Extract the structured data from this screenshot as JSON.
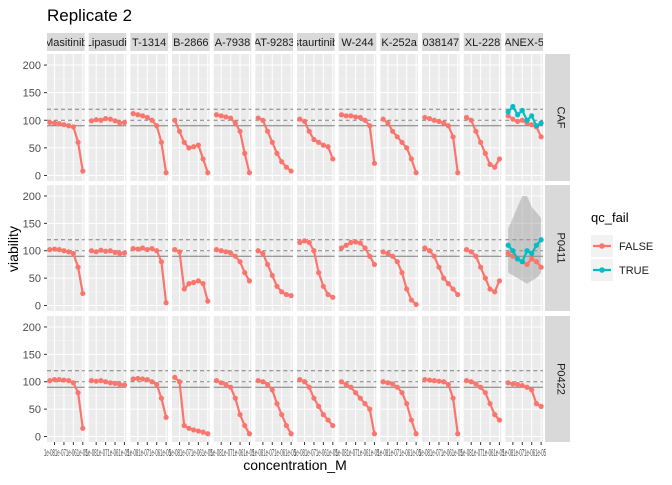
{
  "chart_data": {
    "type": "line",
    "title": "Replicate 2",
    "xlabel": "concentration_M",
    "ylabel": "viability",
    "ylim": [
      -10,
      220
    ],
    "yticks": [
      0,
      50,
      100,
      150,
      200
    ],
    "x_tick_text": "1e-081e-071e-061e-05",
    "reference_lines": {
      "solid": 90,
      "dashed": [
        100,
        120
      ]
    },
    "drugs": [
      "Masitinib",
      "Lipasudil",
      "T-1314",
      "B-2866",
      "A-7938",
      "AT-9283",
      "staurtinib",
      "W-244",
      "K-252a",
      "038147",
      "XL-228",
      "ANEX-5"
    ],
    "cell_lines": [
      "CAF",
      "P0411",
      "P0422"
    ],
    "legend": {
      "title": "qc_fail",
      "position": "right",
      "entries": [
        {
          "label": "FALSE",
          "color": "#F8766D"
        },
        {
          "label": "TRUE",
          "color": "#00BFC4"
        }
      ]
    },
    "log10_concentration": [
      -8.5,
      -8,
      -7.5,
      -7,
      -6.5,
      -6,
      -5.5,
      -5
    ],
    "grid": true,
    "series": [
      {
        "row": "CAF",
        "drug": "Masitinib",
        "qc_fail": "FALSE",
        "values": [
          96,
          95,
          94,
          92,
          90,
          88,
          60,
          8
        ]
      },
      {
        "row": "CAF",
        "drug": "Lipasudil",
        "qc_fail": "FALSE",
        "values": [
          99,
          101,
          100,
          103,
          102,
          99,
          95,
          96
        ]
      },
      {
        "row": "CAF",
        "drug": "T-1314",
        "qc_fail": "FALSE",
        "values": [
          112,
          110,
          108,
          105,
          100,
          90,
          60,
          5
        ]
      },
      {
        "row": "CAF",
        "drug": "B-2866",
        "qc_fail": "FALSE",
        "values": [
          100,
          80,
          60,
          50,
          52,
          55,
          30,
          5
        ]
      },
      {
        "row": "CAF",
        "drug": "A-7938",
        "qc_fail": "FALSE",
        "values": [
          110,
          108,
          106,
          104,
          95,
          80,
          40,
          5
        ]
      },
      {
        "row": "CAF",
        "drug": "AT-9283",
        "qc_fail": "FALSE",
        "values": [
          104,
          100,
          80,
          60,
          40,
          25,
          15,
          8
        ]
      },
      {
        "row": "CAF",
        "drug": "staurtinib",
        "qc_fail": "FALSE",
        "values": [
          102,
          98,
          80,
          65,
          60,
          55,
          52,
          30
        ]
      },
      {
        "row": "CAF",
        "drug": "W-244",
        "qc_fail": "FALSE",
        "values": [
          110,
          108,
          108,
          106,
          105,
          100,
          90,
          22
        ]
      },
      {
        "row": "CAF",
        "drug": "K-252a",
        "qc_fail": "FALSE",
        "values": [
          102,
          95,
          80,
          70,
          60,
          50,
          30,
          5
        ]
      },
      {
        "row": "CAF",
        "drug": "038147",
        "qc_fail": "FALSE",
        "values": [
          105,
          103,
          100,
          98,
          95,
          90,
          70,
          5
        ]
      },
      {
        "row": "CAF",
        "drug": "XL-228",
        "qc_fail": "FALSE",
        "values": [
          105,
          100,
          80,
          60,
          40,
          20,
          15,
          30
        ]
      },
      {
        "row": "CAF",
        "drug": "ANEX-5",
        "qc_fail": "FALSE",
        "values": [
          108,
          102,
          98,
          100,
          95,
          92,
          88,
          70
        ]
      },
      {
        "row": "CAF",
        "drug": "ANEX-5",
        "qc_fail": "TRUE",
        "values": [
          115,
          125,
          110,
          118,
          100,
          108,
          90,
          95
        ]
      },
      {
        "row": "P0411",
        "drug": "Masitinib",
        "qc_fail": "FALSE",
        "values": [
          102,
          103,
          102,
          100,
          98,
          95,
          70,
          22
        ]
      },
      {
        "row": "P0411",
        "drug": "Lipasudil",
        "qc_fail": "FALSE",
        "values": [
          100,
          98,
          101,
          99,
          100,
          97,
          95,
          96
        ]
      },
      {
        "row": "P0411",
        "drug": "T-1314",
        "qc_fail": "FALSE",
        "values": [
          104,
          103,
          105,
          102,
          104,
          100,
          80,
          5
        ]
      },
      {
        "row": "P0411",
        "drug": "B-2866",
        "qc_fail": "FALSE",
        "values": [
          102,
          98,
          30,
          40,
          42,
          45,
          40,
          8
        ]
      },
      {
        "row": "P0411",
        "drug": "A-7938",
        "qc_fail": "FALSE",
        "values": [
          102,
          100,
          98,
          96,
          90,
          80,
          60,
          45
        ]
      },
      {
        "row": "P0411",
        "drug": "AT-9283",
        "qc_fail": "FALSE",
        "values": [
          100,
          95,
          75,
          55,
          35,
          25,
          20,
          18
        ]
      },
      {
        "row": "P0411",
        "drug": "staurtinib",
        "qc_fail": "FALSE",
        "values": [
          115,
          118,
          115,
          100,
          60,
          35,
          20,
          15
        ]
      },
      {
        "row": "P0411",
        "drug": "W-244",
        "qc_fail": "FALSE",
        "values": [
          105,
          110,
          115,
          116,
          114,
          105,
          90,
          75
        ]
      },
      {
        "row": "P0411",
        "drug": "K-252a",
        "qc_fail": "FALSE",
        "values": [
          98,
          95,
          90,
          80,
          60,
          30,
          10,
          2
        ]
      },
      {
        "row": "P0411",
        "drug": "038147",
        "qc_fail": "FALSE",
        "values": [
          105,
          100,
          90,
          70,
          50,
          40,
          30,
          20
        ]
      },
      {
        "row": "P0411",
        "drug": "XL-228",
        "qc_fail": "FALSE",
        "values": [
          102,
          98,
          90,
          70,
          50,
          30,
          25,
          45
        ]
      },
      {
        "row": "P0411",
        "drug": "ANEX-5",
        "qc_fail": "FALSE",
        "values": [
          95,
          90,
          85,
          80,
          75,
          85,
          80,
          70
        ]
      },
      {
        "row": "P0411",
        "drug": "ANEX-5",
        "qc_fail": "TRUE",
        "values": [
          110,
          100,
          85,
          80,
          100,
          95,
          110,
          120
        ]
      },
      {
        "row": "P0422",
        "drug": "Masitinib",
        "qc_fail": "FALSE",
        "values": [
          102,
          104,
          104,
          103,
          102,
          98,
          80,
          15
        ]
      },
      {
        "row": "P0422",
        "drug": "Lipasudil",
        "qc_fail": "FALSE",
        "values": [
          102,
          101,
          102,
          100,
          98,
          97,
          95,
          94
        ]
      },
      {
        "row": "P0422",
        "drug": "T-1314",
        "qc_fail": "FALSE",
        "values": [
          105,
          106,
          105,
          104,
          100,
          95,
          70,
          35
        ]
      },
      {
        "row": "P0422",
        "drug": "B-2866",
        "qc_fail": "FALSE",
        "values": [
          108,
          100,
          20,
          15,
          12,
          10,
          8,
          5
        ]
      },
      {
        "row": "P0422",
        "drug": "A-7938",
        "qc_fail": "FALSE",
        "values": [
          102,
          98,
          95,
          90,
          70,
          40,
          20,
          5
        ]
      },
      {
        "row": "P0422",
        "drug": "AT-9283",
        "qc_fail": "FALSE",
        "values": [
          102,
          100,
          95,
          85,
          60,
          40,
          20,
          5
        ]
      },
      {
        "row": "P0422",
        "drug": "staurtinib",
        "qc_fail": "FALSE",
        "values": [
          104,
          100,
          90,
          70,
          55,
          40,
          30,
          20
        ]
      },
      {
        "row": "P0422",
        "drug": "W-244",
        "qc_fail": "FALSE",
        "values": [
          100,
          95,
          90,
          80,
          70,
          60,
          50,
          5
        ]
      },
      {
        "row": "P0422",
        "drug": "K-252a",
        "qc_fail": "FALSE",
        "values": [
          100,
          98,
          96,
          90,
          80,
          60,
          30,
          5
        ]
      },
      {
        "row": "P0422",
        "drug": "038147",
        "qc_fail": "FALSE",
        "values": [
          104,
          103,
          102,
          101,
          100,
          95,
          70,
          5
        ]
      },
      {
        "row": "P0422",
        "drug": "XL-228",
        "qc_fail": "FALSE",
        "values": [
          102,
          100,
          96,
          90,
          80,
          60,
          40,
          30
        ]
      },
      {
        "row": "P0422",
        "drug": "ANEX-5",
        "qc_fail": "FALSE",
        "values": [
          98,
          96,
          95,
          93,
          90,
          85,
          60,
          55
        ]
      }
    ],
    "ribbon": {
      "row": "P0411",
      "drug": "ANEX-5",
      "lower": [
        60,
        55,
        50,
        45,
        40,
        45,
        50,
        60
      ],
      "upper": [
        140,
        160,
        180,
        200,
        200,
        180,
        170,
        160
      ]
    }
  }
}
